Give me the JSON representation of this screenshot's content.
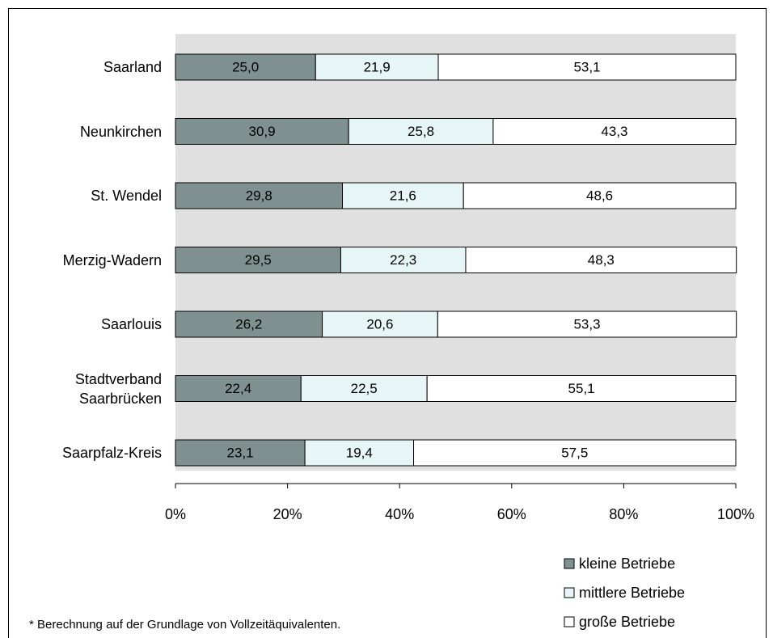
{
  "chart_data": {
    "type": "stacked-bar-horizontal",
    "categories": [
      "Saarland",
      "Neunkirchen",
      "St. Wendel",
      "Merzig-Wadern",
      "Saarlouis",
      "Stadtverband Saarbrücken",
      "Saarpfalz-Kreis"
    ],
    "series": [
      {
        "name": "kleine Betriebe",
        "color": "#7f9090",
        "values": [
          25.0,
          30.9,
          29.8,
          29.5,
          26.2,
          22.4,
          23.1
        ],
        "value_labels": [
          "25,0",
          "30,9",
          "29,8",
          "29,5",
          "26,2",
          "22,4",
          "23,1"
        ]
      },
      {
        "name": "mittlere Betriebe",
        "color": "#e6f5f5",
        "values": [
          21.9,
          25.8,
          21.6,
          22.3,
          20.6,
          22.5,
          19.4
        ],
        "value_labels": [
          "21,9",
          "25,8",
          "21,6",
          "22,3",
          "20,6",
          "22,5",
          "19,4"
        ]
      },
      {
        "name": "große Betriebe",
        "color": "#ffffff",
        "values": [
          53.1,
          43.3,
          48.6,
          48.3,
          53.3,
          55.1,
          57.5
        ],
        "value_labels": [
          "53,1",
          "43,3",
          "48,6",
          "48,3",
          "53,3",
          "55,1",
          "57,5"
        ]
      }
    ],
    "xlim": [
      0,
      100
    ],
    "xticks": [
      {
        "value": 0,
        "label": "0%"
      },
      {
        "value": 20,
        "label": "20%"
      },
      {
        "value": 40,
        "label": "40%"
      },
      {
        "value": 60,
        "label": "60%"
      },
      {
        "value": 80,
        "label": "80%"
      },
      {
        "value": 100,
        "label": "100%"
      }
    ],
    "note": "* Berechnung auf der Grundlage von Vollzeitäquivalenten.",
    "legend": "bottom-right"
  }
}
